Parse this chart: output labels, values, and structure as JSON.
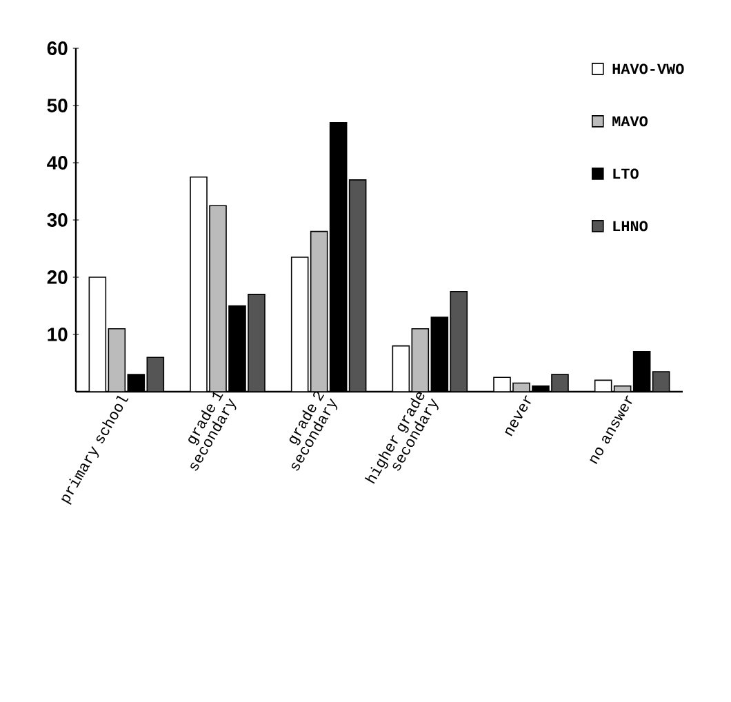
{
  "chart_data": {
    "type": "bar",
    "categories": [
      "primary school",
      "grade 1 secondary",
      "grade 2 secondary",
      "higher grade secondary",
      "never",
      "no answer"
    ],
    "series": [
      {
        "name": "HAVO-VWO",
        "color": "#ffffff",
        "values": [
          20,
          37.5,
          23.5,
          8,
          2.5,
          2
        ]
      },
      {
        "name": "MAVO",
        "color": "#bbbbbb",
        "values": [
          11,
          32.5,
          28,
          11,
          1.5,
          1
        ]
      },
      {
        "name": "LTO",
        "color": "#000000",
        "values": [
          3,
          15,
          47,
          13,
          1,
          7
        ]
      },
      {
        "name": "LHNO",
        "color": "#555555",
        "values": [
          6,
          17,
          37,
          17.5,
          3,
          3.5
        ]
      }
    ],
    "ylim": [
      0,
      60
    ],
    "yticks": [
      10,
      20,
      30,
      40,
      50,
      60
    ],
    "grid": false,
    "legend": "top right"
  }
}
